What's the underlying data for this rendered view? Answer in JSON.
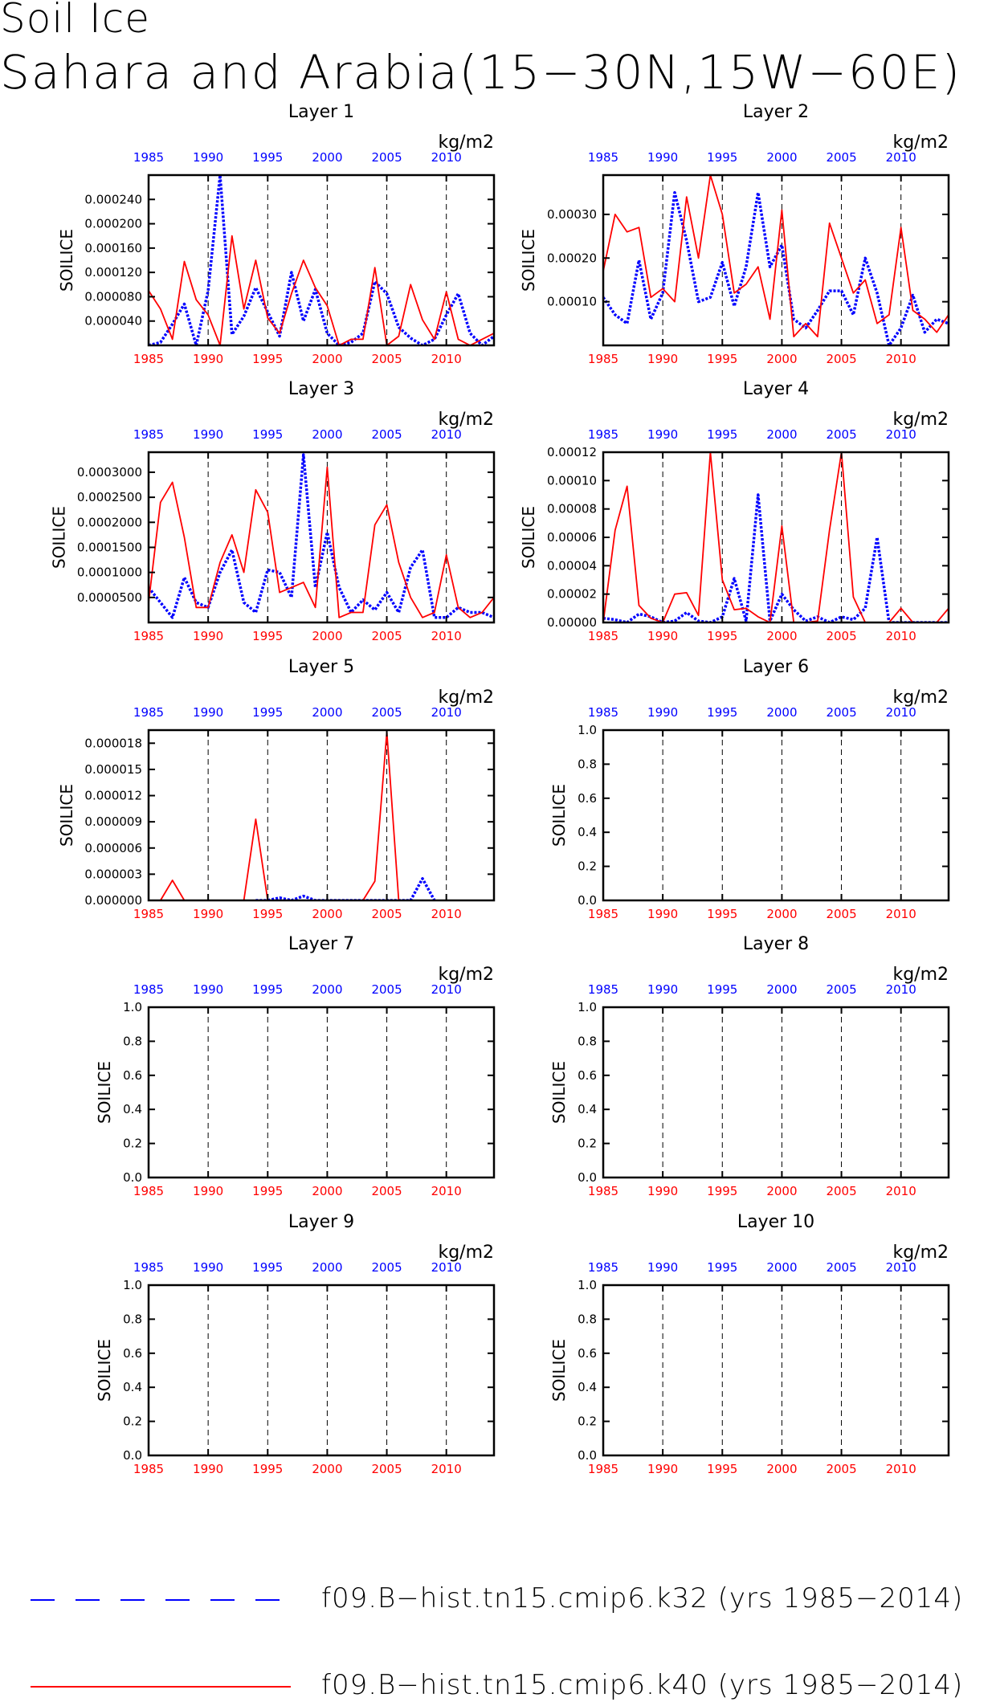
{
  "title": {
    "line1": "Soil Ice",
    "line2": "Sahara and Arabia(15−30N,15W−60E)"
  },
  "colors": {
    "series1": "#0000ff",
    "series2": "#ff0000",
    "axis": "#000000"
  },
  "legend": [
    {
      "label": "f09.B−hist.tn15.cmip6.k32 (yrs 1985−2014)",
      "color": "#0000ff",
      "style": "dashed"
    },
    {
      "label": "f09.B−hist.tn15.cmip6.k40 (yrs 1985−2014)",
      "color": "#ff0000",
      "style": "solid"
    }
  ],
  "chart_data": [
    {
      "type": "line",
      "title": "Layer 1",
      "ylabel": "SOILICE",
      "units": "kg/m2",
      "x_ticks": [
        1985,
        1990,
        1995,
        2000,
        2005,
        2010
      ],
      "xlim": [
        1985,
        2014
      ],
      "ylim": [
        0,
        0.00028
      ],
      "yticks": [
        "0.000040",
        "0.000080",
        "0.000120",
        "0.000160",
        "0.000200",
        "0.000240"
      ],
      "ytick_values": [
        4e-05,
        8e-05,
        0.00012,
        0.00016,
        0.0002,
        0.00024
      ],
      "series": [
        {
          "name": "f09.B−hist.tn15.cmip6.k32",
          "color": "#0000ff",
          "style": "dashed",
          "x": [
            1985,
            1986,
            1987,
            1988,
            1989,
            1990,
            1991,
            1992,
            1993,
            1994,
            1995,
            1996,
            1997,
            1998,
            1999,
            2000,
            2001,
            2002,
            2003,
            2004,
            2005,
            2006,
            2007,
            2008,
            2009,
            2010,
            2011,
            2012,
            2013,
            2014
          ],
          "y": [
            0.0,
            5e-06,
            3.5e-05,
            6.8e-05,
            0.0,
            9e-05,
            0.00028,
            1.8e-05,
            4.8e-05,
            9.5e-05,
            5.5e-05,
            1.5e-05,
            0.00012,
            4e-05,
            9.2e-05,
            2e-05,
            0.0,
            5e-06,
            2e-05,
            0.000105,
            8.5e-05,
            3e-05,
            1.2e-05,
            0.0,
            1e-05,
            5e-05,
            8.5e-05,
            2e-05,
            0.0,
            1.5e-05
          ]
        },
        {
          "name": "f09.B−hist.tn15.cmip6.k40",
          "color": "#ff0000",
          "style": "solid",
          "x": [
            1985,
            1986,
            1987,
            1988,
            1989,
            1990,
            1991,
            1992,
            1993,
            1994,
            1995,
            1996,
            1997,
            1998,
            1999,
            2000,
            2001,
            2002,
            2003,
            2004,
            2005,
            2006,
            2007,
            2008,
            2009,
            2010,
            2011,
            2012,
            2013,
            2014
          ],
          "y": [
            9e-05,
            6e-05,
            1e-05,
            0.000138,
            7.5e-05,
            5e-05,
            0.0,
            0.00018,
            6e-05,
            0.00014,
            4.5e-05,
            2e-05,
            8.5e-05,
            0.00014,
            9.5e-05,
            6.5e-05,
            0.0,
            1e-05,
            1e-05,
            0.000128,
            0.0,
            1.5e-05,
            0.0001,
            4.2e-05,
            1e-05,
            8.8e-05,
            1e-05,
            0.0,
            1e-05,
            2e-05
          ]
        }
      ]
    },
    {
      "type": "line",
      "title": "Layer 2",
      "ylabel": "SOILICE",
      "units": "kg/m2",
      "x_ticks": [
        1985,
        1990,
        1995,
        2000,
        2005,
        2010
      ],
      "xlim": [
        1985,
        2014
      ],
      "ylim": [
        0,
        0.00039
      ],
      "yticks": [
        "0.00010",
        "0.00020",
        "0.00030"
      ],
      "ytick_values": [
        0.0001,
        0.0002,
        0.0003
      ],
      "series": [
        {
          "name": "f09.B−hist.tn15.cmip6.k32",
          "color": "#0000ff",
          "style": "dashed",
          "x": [
            1985,
            1986,
            1987,
            1988,
            1989,
            1990,
            1991,
            1992,
            1993,
            1994,
            1995,
            1996,
            1997,
            1998,
            1999,
            2000,
            2001,
            2002,
            2003,
            2004,
            2005,
            2006,
            2007,
            2008,
            2009,
            2010,
            2011,
            2012,
            2013,
            2014
          ],
          "y": [
            0.00011,
            7e-05,
            5e-05,
            0.000195,
            6e-05,
            0.00012,
            0.00035,
            0.00024,
            0.0001,
            0.00011,
            0.00019,
            9e-05,
            0.00018,
            0.00035,
            0.00018,
            0.00023,
            6e-05,
            4e-05,
            8e-05,
            0.000125,
            0.000125,
            7e-05,
            0.0002,
            0.00012,
            0.0,
            4e-05,
            0.000115,
            3e-05,
            6e-05,
            5e-05
          ]
        },
        {
          "name": "f09.B−hist.tn15.cmip6.k40",
          "color": "#ff0000",
          "style": "solid",
          "x": [
            1985,
            1986,
            1987,
            1988,
            1989,
            1990,
            1991,
            1992,
            1993,
            1994,
            1995,
            1996,
            1997,
            1998,
            1999,
            2000,
            2001,
            2002,
            2003,
            2004,
            2005,
            2006,
            2007,
            2008,
            2009,
            2010,
            2011,
            2012,
            2013,
            2014
          ],
          "y": [
            0.00017,
            0.0003,
            0.00026,
            0.00027,
            0.00011,
            0.00013,
            0.0001,
            0.00034,
            0.0002,
            0.00039,
            0.0003,
            0.00012,
            0.00014,
            0.00018,
            6e-05,
            0.00031,
            2e-05,
            5e-05,
            2e-05,
            0.00028,
            0.0002,
            0.00012,
            0.00015,
            5e-05,
            7e-05,
            0.00027,
            8e-05,
            6e-05,
            3e-05,
            7e-05
          ]
        }
      ]
    },
    {
      "type": "line",
      "title": "Layer 3",
      "ylabel": "SOILICE",
      "units": "kg/m2",
      "x_ticks": [
        1985,
        1990,
        1995,
        2000,
        2005,
        2010
      ],
      "xlim": [
        1985,
        2014
      ],
      "ylim": [
        0,
        0.00034
      ],
      "yticks": [
        "0.0000500",
        "0.0001000",
        "0.0001500",
        "0.0002000",
        "0.0002500",
        "0.0003000"
      ],
      "ytick_values": [
        5e-05,
        0.0001,
        0.00015,
        0.0002,
        0.00025,
        0.0003
      ],
      "series": [
        {
          "name": "f09.B−hist.tn15.cmip6.k32",
          "color": "#0000ff",
          "style": "dashed",
          "x": [
            1985,
            1986,
            1987,
            1988,
            1989,
            1990,
            1991,
            1992,
            1993,
            1994,
            1995,
            1996,
            1997,
            1998,
            1999,
            2000,
            2001,
            2002,
            2003,
            2004,
            2005,
            2006,
            2007,
            2008,
            2009,
            2010,
            2011,
            2012,
            2013,
            2014
          ],
          "y": [
            7e-05,
            4e-05,
            1e-05,
            9e-05,
            4e-05,
            3e-05,
            0.0001,
            0.000145,
            4e-05,
            2e-05,
            0.000105,
            0.0001,
            5e-05,
            0.000335,
            7e-05,
            0.00018,
            7e-05,
            2e-05,
            4.5e-05,
            2.5e-05,
            6e-05,
            2e-05,
            0.00011,
            0.000145,
            1e-05,
            1e-05,
            3e-05,
            2e-05,
            2e-05,
            1e-05
          ]
        },
        {
          "name": "f09.B−hist.tn15.cmip6.k40",
          "color": "#ff0000",
          "style": "solid",
          "x": [
            1985,
            1986,
            1987,
            1988,
            1989,
            1990,
            1991,
            1992,
            1993,
            1994,
            1995,
            1996,
            1997,
            1998,
            1999,
            2000,
            2001,
            2002,
            2003,
            2004,
            2005,
            2006,
            2007,
            2008,
            2009,
            2010,
            2011,
            2012,
            2013,
            2014
          ],
          "y": [
            4e-05,
            0.00024,
            0.00028,
            0.00017,
            3e-05,
            3e-05,
            0.00012,
            0.000175,
            0.0001,
            0.000265,
            0.00022,
            6e-05,
            7e-05,
            8e-05,
            3e-05,
            0.00031,
            1e-05,
            2e-05,
            2e-05,
            0.000195,
            0.000235,
            0.00012,
            5e-05,
            1e-05,
            2e-05,
            0.000135,
            3e-05,
            1e-05,
            2e-05,
            5e-05
          ]
        }
      ]
    },
    {
      "type": "line",
      "title": "Layer 4",
      "ylabel": "SOILICE",
      "units": "kg/m2",
      "x_ticks": [
        1985,
        1990,
        1995,
        2000,
        2005,
        2010
      ],
      "xlim": [
        1985,
        2014
      ],
      "ylim": [
        0,
        0.00012
      ],
      "yticks": [
        "0.00000",
        "0.00002",
        "0.00004",
        "0.00006",
        "0.00008",
        "0.00010",
        "0.00012"
      ],
      "ytick_values": [
        0,
        2e-05,
        4e-05,
        6e-05,
        8e-05,
        0.0001,
        0.00012
      ],
      "series": [
        {
          "name": "f09.B−hist.tn15.cmip6.k32",
          "color": "#0000ff",
          "style": "dashed",
          "x": [
            1985,
            1986,
            1987,
            1988,
            1989,
            1990,
            1991,
            1992,
            1993,
            1994,
            1995,
            1996,
            1997,
            1998,
            1999,
            2000,
            2001,
            2002,
            2003,
            2004,
            2005,
            2006,
            2007,
            2008,
            2009,
            2010,
            2011,
            2012,
            2013,
            2014
          ],
          "y": [
            3e-06,
            2e-06,
            0.0,
            6e-06,
            4e-06,
            0.0,
            1e-06,
            7e-06,
            1e-06,
            0.0,
            4e-06,
            3.1e-05,
            1e-06,
            9e-05,
            1e-06,
            2e-05,
            9e-06,
            1e-06,
            4e-06,
            0.0,
            4e-06,
            2e-06,
            1e-05,
            6e-05,
            0.0,
            0.0,
            0.0,
            0.0,
            0.0,
            0.0
          ]
        },
        {
          "name": "f09.B−hist.tn15.cmip6.k40",
          "color": "#ff0000",
          "style": "solid",
          "x": [
            1985,
            1986,
            1987,
            1988,
            1989,
            1990,
            1991,
            1992,
            1993,
            1994,
            1995,
            1996,
            1997,
            1998,
            1999,
            2000,
            2001,
            2002,
            2003,
            2004,
            2005,
            2006,
            2007,
            2008,
            2009,
            2010,
            2011,
            2012,
            2013,
            2014
          ],
          "y": [
            0.0,
            6.5e-05,
            9.6e-05,
            1.2e-05,
            3e-06,
            0.0,
            2e-05,
            2.1e-05,
            5e-06,
            0.00012,
            3e-05,
            9e-06,
            1e-05,
            4e-06,
            0.0,
            6.8e-05,
            0.0,
            0.0,
            1e-06,
            6.5e-05,
            0.00012,
            1.8e-05,
            0.0,
            0.0,
            0.0,
            1e-05,
            0.0,
            0.0,
            0.0,
            1e-05
          ]
        }
      ]
    },
    {
      "type": "line",
      "title": "Layer 5",
      "ylabel": "SOILICE",
      "units": "kg/m2",
      "x_ticks": [
        1985,
        1990,
        1995,
        2000,
        2005,
        2010
      ],
      "xlim": [
        1985,
        2014
      ],
      "ylim": [
        0,
        1.95e-05
      ],
      "yticks": [
        "0.000000",
        "0.000003",
        "0.000006",
        "0.000009",
        "0.000012",
        "0.000015",
        "0.000018"
      ],
      "ytick_values": [
        0,
        3e-06,
        6e-06,
        9e-06,
        1.2e-05,
        1.5e-05,
        1.8e-05
      ],
      "series": [
        {
          "name": "f09.B−hist.tn15.cmip6.k32",
          "color": "#0000ff",
          "style": "dashed",
          "x": [
            1994,
            1995,
            1996,
            1997,
            1998,
            1999,
            2000,
            2001,
            2002,
            2003,
            2004,
            2005,
            2006,
            2007,
            2008,
            2009
          ],
          "y": [
            0.0,
            0.0,
            3e-07,
            0.0,
            5e-07,
            0.0,
            0.0,
            0.0,
            0.0,
            0.0,
            0.0,
            0.0,
            0.0,
            0.0,
            2.5e-06,
            0.0
          ]
        },
        {
          "name": "f09.B−hist.tn15.cmip6.k40",
          "color": "#ff0000",
          "style": "solid",
          "x": [
            1986,
            1987,
            1988,
            1989,
            1990,
            1991,
            1992,
            1993,
            1994,
            1995,
            1996,
            1997,
            1998,
            1999,
            2000,
            2001,
            2002,
            2003,
            2004,
            2005,
            2006
          ],
          "y": [
            0.0,
            2.3e-06,
            0.0,
            0.0,
            0.0,
            0.0,
            0.0,
            0.0,
            9.3e-06,
            0.0,
            0.0,
            0.0,
            0.0,
            0.0,
            0.0,
            0.0,
            0.0,
            0.0,
            2.2e-06,
            1.93e-05,
            0.0
          ]
        }
      ]
    },
    {
      "type": "line",
      "title": "Layer 6",
      "ylabel": "SOILICE",
      "units": "kg/m2",
      "x_ticks": [
        1985,
        1990,
        1995,
        2000,
        2005,
        2010
      ],
      "xlim": [
        1985,
        2014
      ],
      "ylim": [
        0,
        1
      ],
      "yticks": [
        "0.0",
        "0.2",
        "0.4",
        "0.6",
        "0.8",
        "1.0"
      ],
      "ytick_values": [
        0,
        0.2,
        0.4,
        0.6,
        0.8,
        1.0
      ],
      "series": []
    },
    {
      "type": "line",
      "title": "Layer 7",
      "ylabel": "SOILICE",
      "units": "kg/m2",
      "x_ticks": [
        1985,
        1990,
        1995,
        2000,
        2005,
        2010
      ],
      "xlim": [
        1985,
        2014
      ],
      "ylim": [
        0,
        1
      ],
      "yticks": [
        "0.0",
        "0.2",
        "0.4",
        "0.6",
        "0.8",
        "1.0"
      ],
      "ytick_values": [
        0,
        0.2,
        0.4,
        0.6,
        0.8,
        1.0
      ],
      "series": []
    },
    {
      "type": "line",
      "title": "Layer 8",
      "ylabel": "SOILICE",
      "units": "kg/m2",
      "x_ticks": [
        1985,
        1990,
        1995,
        2000,
        2005,
        2010
      ],
      "xlim": [
        1985,
        2014
      ],
      "ylim": [
        0,
        1
      ],
      "yticks": [
        "0.0",
        "0.2",
        "0.4",
        "0.6",
        "0.8",
        "1.0"
      ],
      "ytick_values": [
        0,
        0.2,
        0.4,
        0.6,
        0.8,
        1.0
      ],
      "series": []
    },
    {
      "type": "line",
      "title": "Layer 9",
      "ylabel": "SOILICE",
      "units": "kg/m2",
      "x_ticks": [
        1985,
        1990,
        1995,
        2000,
        2005,
        2010
      ],
      "xlim": [
        1985,
        2014
      ],
      "ylim": [
        0,
        1
      ],
      "yticks": [
        "0.0",
        "0.2",
        "0.4",
        "0.6",
        "0.8",
        "1.0"
      ],
      "ytick_values": [
        0,
        0.2,
        0.4,
        0.6,
        0.8,
        1.0
      ],
      "series": []
    },
    {
      "type": "line",
      "title": "Layer 10",
      "ylabel": "SOILICE",
      "units": "kg/m2",
      "x_ticks": [
        1985,
        1990,
        1995,
        2000,
        2005,
        2010
      ],
      "xlim": [
        1985,
        2014
      ],
      "ylim": [
        0,
        1
      ],
      "yticks": [
        "0.0",
        "0.2",
        "0.4",
        "0.6",
        "0.8",
        "1.0"
      ],
      "ytick_values": [
        0,
        0.2,
        0.4,
        0.6,
        0.8,
        1.0
      ],
      "series": []
    }
  ]
}
